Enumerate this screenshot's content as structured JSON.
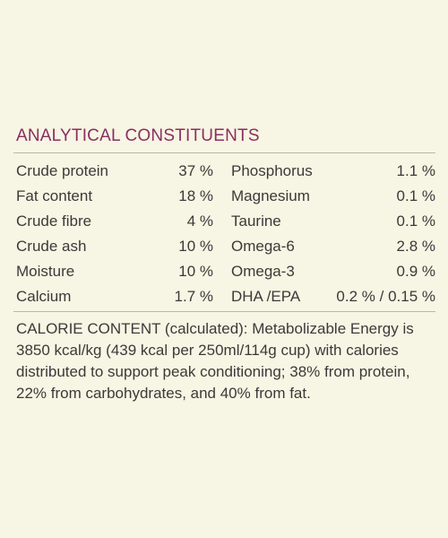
{
  "section_title": "ANALYTICAL CONSTITUENTS",
  "constituents": [
    {
      "left_name": "Crude protein",
      "left_value": "37 %",
      "right_name": "Phosphorus",
      "right_value": "1.1 %"
    },
    {
      "left_name": "Fat content",
      "left_value": "18 %",
      "right_name": "Magnesium",
      "right_value": "0.1 %"
    },
    {
      "left_name": "Crude fibre",
      "left_value": "4 %",
      "right_name": "Taurine",
      "right_value": "0.1 %"
    },
    {
      "left_name": "Crude ash",
      "left_value": "10 %",
      "right_name": "Omega-6",
      "right_value": "2.8 %"
    },
    {
      "left_name": "Moisture",
      "left_value": "10 %",
      "right_name": "Omega-3",
      "right_value": "0.9 %"
    },
    {
      "left_name": "Calcium",
      "left_value": "1.7 %",
      "right_name": "DHA /EPA",
      "right_value": "0.2 % / 0.15 %"
    }
  ],
  "calorie_content": "CALORIE CONTENT (calculated): Metabolizable Energy is 3850 kcal/kg (439 kcal per 250ml/114g cup) with calories distributed to support peak conditioning; 38% from protein, 22% from carbohydrates, and 40% from fat.",
  "colors": {
    "background": "#f7f5e3",
    "title": "#8a2f62",
    "text": "#3a3a3a",
    "rule": "#b9b7a6"
  }
}
